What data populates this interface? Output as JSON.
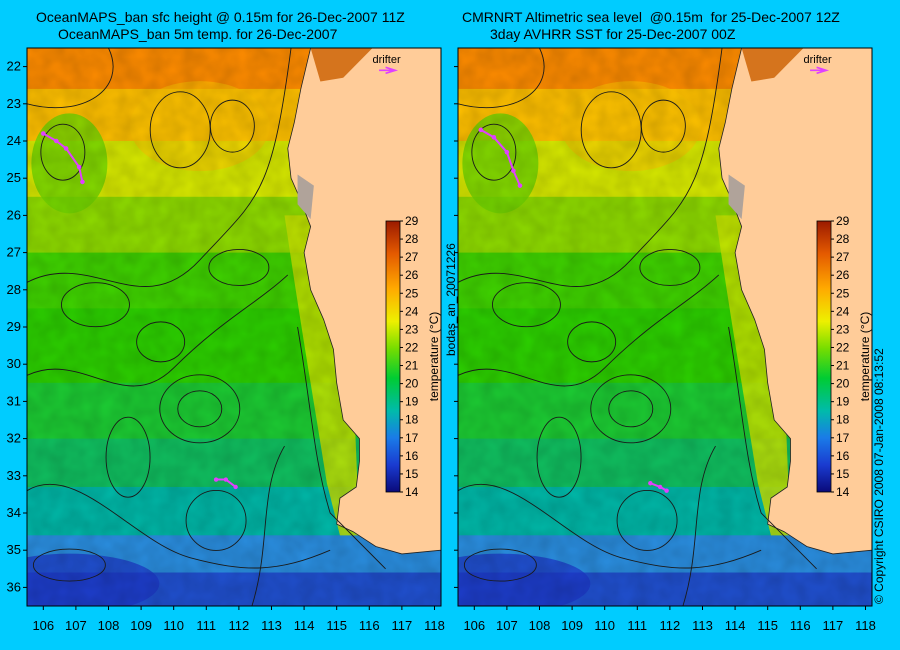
{
  "chart_data": [
    {
      "type": "heatmap",
      "title_line1": "OceanMAPS_ban sfc height @ 0.15m for 26-Dec-2007 11Z",
      "title_line2": "OceanMAPS_ban 5m temp. for 26-Dec-2007",
      "x_ticks": [
        "106",
        "107",
        "108",
        "109",
        "110",
        "111",
        "112",
        "113",
        "114",
        "115",
        "116",
        "117",
        "118"
      ],
      "y_ticks": [
        "22",
        "23",
        "24",
        "25",
        "26",
        "27",
        "28",
        "29",
        "30",
        "31",
        "32",
        "33",
        "34",
        "35",
        "36"
      ],
      "xlim": [
        105.5,
        118.2
      ],
      "ylim": [
        21.5,
        36.5
      ],
      "drifter_label": "drifter",
      "colorbar": {
        "label": "temperature (°C)",
        "ticks": [
          "29",
          "28",
          "27",
          "26",
          "25",
          "24",
          "23",
          "22",
          "21",
          "20",
          "19",
          "18",
          "17",
          "16",
          "15",
          "14"
        ],
        "range": [
          14,
          29
        ]
      }
    },
    {
      "type": "heatmap",
      "title_line1": "CMRNRT Altimetric sea level  @0.15m  for 25-Dec-2007 12Z",
      "title_line2": "3day AVHRR SST for 25-Dec-2007 00Z",
      "x_ticks": [
        "106",
        "107",
        "108",
        "109",
        "110",
        "111",
        "112",
        "113",
        "114",
        "115",
        "116",
        "117",
        "118"
      ],
      "y_ticks": [],
      "xlim": [
        105.5,
        118.2
      ],
      "ylim": [
        21.5,
        36.5
      ],
      "drifter_label": "drifter",
      "colorbar": {
        "label": "temperature (°C)",
        "ticks": [
          "29",
          "28",
          "27",
          "26",
          "25",
          "24",
          "23",
          "22",
          "21",
          "20",
          "19",
          "18",
          "17",
          "16",
          "15",
          "14"
        ],
        "range": [
          14,
          29
        ]
      }
    }
  ],
  "side_labels": {
    "middle": "bodas_an_20071226",
    "copyright": "© Copyright CSIRO 2008  07-Jan-2008 08:13:52"
  },
  "colors": {
    "background": "#00ccff",
    "land": "#ffcc99",
    "contour": "#1a1a1a",
    "drifter": "#e040ff"
  }
}
